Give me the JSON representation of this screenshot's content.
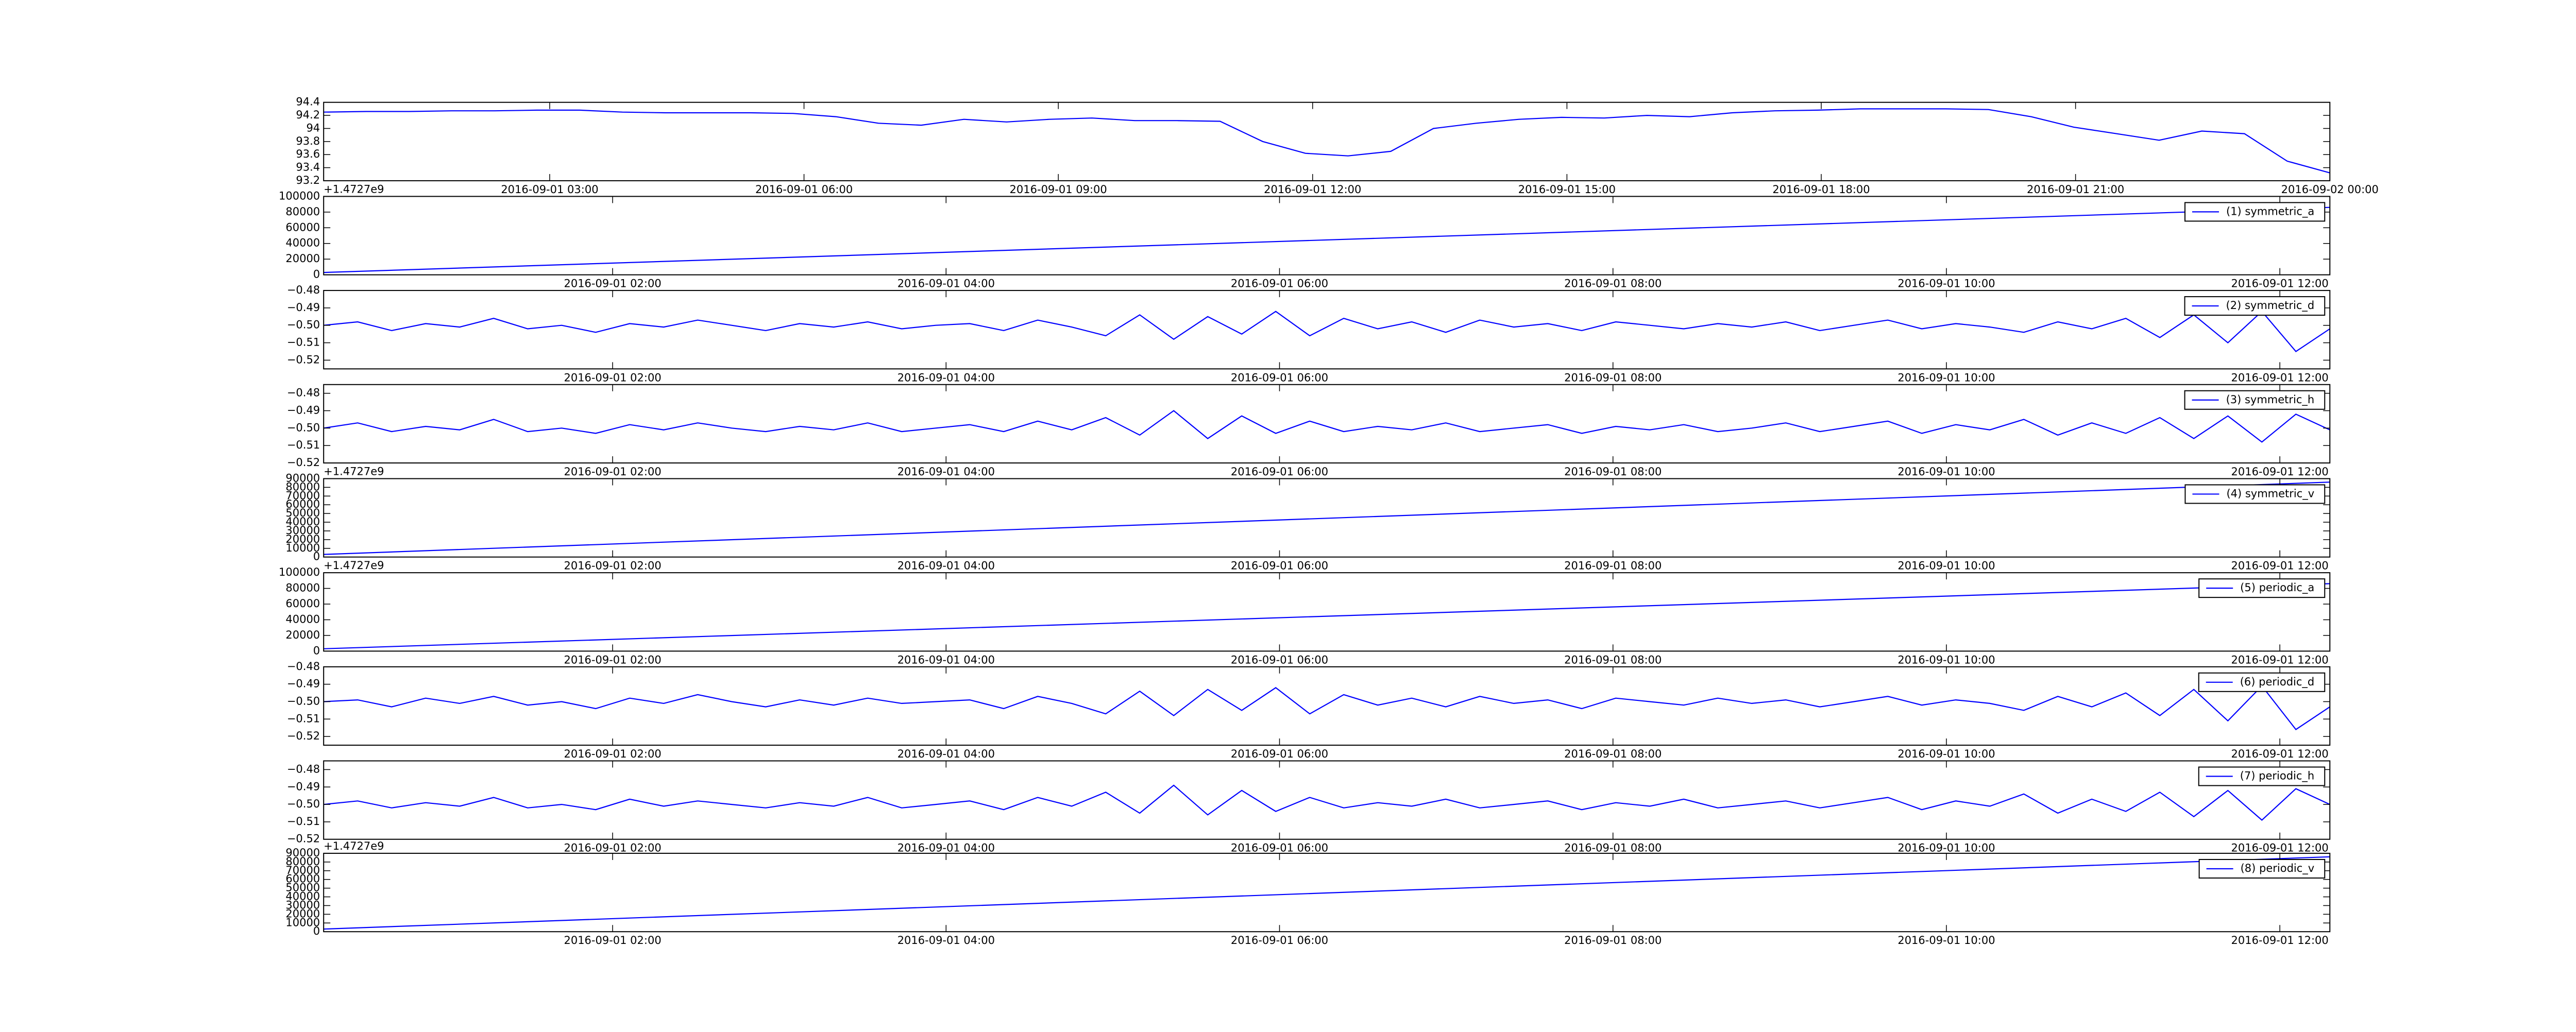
{
  "chart_data": [
    {
      "type": "line",
      "xlim": [
        "2016-09-01 00:20",
        "2016-09-02 00:00"
      ],
      "xticks": [
        "2016-09-01 03:00",
        "2016-09-01 06:00",
        "2016-09-01 09:00",
        "2016-09-01 12:00",
        "2016-09-01 15:00",
        "2016-09-01 18:00",
        "2016-09-01 21:00",
        "2016-09-02 00:00"
      ],
      "ylim": [
        93.2,
        94.4
      ],
      "yticks": [
        93.2,
        93.4,
        93.6,
        93.8,
        94.0,
        94.2,
        94.4
      ],
      "series": [
        {
          "color": "#0000ff",
          "values": [
            94.25,
            94.26,
            94.26,
            94.27,
            94.27,
            94.28,
            94.28,
            94.25,
            94.24,
            94.24,
            94.24,
            94.23,
            94.18,
            94.08,
            94.05,
            94.14,
            94.1,
            94.14,
            94.16,
            94.12,
            94.12,
            94.11,
            93.8,
            93.62,
            93.58,
            93.65,
            94.0,
            94.08,
            94.14,
            94.17,
            94.16,
            94.2,
            94.18,
            94.24,
            94.27,
            94.28,
            94.3,
            94.3,
            94.3,
            94.29,
            94.18,
            94.02,
            93.92,
            93.82,
            93.96,
            93.92,
            93.5,
            93.32
          ]
        }
      ]
    },
    {
      "type": "line",
      "offset_text": "+1.4727e9",
      "xlim": [
        "2016-09-01 00:16",
        "2016-09-01 12:18"
      ],
      "xticks": [
        "2016-09-01 02:00",
        "2016-09-01 04:00",
        "2016-09-01 06:00",
        "2016-09-01 08:00",
        "2016-09-01 10:00",
        "2016-09-01 12:00"
      ],
      "ylim": [
        0,
        100000
      ],
      "yticks": [
        0,
        20000,
        40000,
        60000,
        80000,
        100000
      ],
      "series": [
        {
          "name": "(1) symmetric_a",
          "color": "#0000ff",
          "values": [
            3000,
            86000
          ]
        }
      ]
    },
    {
      "type": "line",
      "xlim": [
        "2016-09-01 00:16",
        "2016-09-01 12:18"
      ],
      "xticks": [
        "2016-09-01 02:00",
        "2016-09-01 04:00",
        "2016-09-01 06:00",
        "2016-09-01 08:00",
        "2016-09-01 10:00",
        "2016-09-01 12:00"
      ],
      "ylim": [
        -0.525,
        -0.48
      ],
      "yticks": [
        {
          "value": -0.52,
          "label": "−0.52"
        },
        {
          "value": -0.51,
          "label": "−0.51"
        },
        {
          "value": -0.5,
          "label": "−0.50"
        },
        {
          "value": -0.49,
          "label": "−0.49"
        },
        {
          "value": -0.48,
          "label": "−0.48"
        }
      ],
      "series": [
        {
          "name": "(2) symmetric_d",
          "color": "#0000ff",
          "values": [
            -0.5,
            -0.498,
            -0.503,
            -0.499,
            -0.501,
            -0.496,
            -0.502,
            -0.5,
            -0.504,
            -0.499,
            -0.501,
            -0.497,
            -0.5,
            -0.503,
            -0.499,
            -0.501,
            -0.498,
            -0.502,
            -0.5,
            -0.499,
            -0.503,
            -0.497,
            -0.501,
            -0.506,
            -0.494,
            -0.508,
            -0.495,
            -0.505,
            -0.492,
            -0.506,
            -0.496,
            -0.502,
            -0.498,
            -0.504,
            -0.497,
            -0.501,
            -0.499,
            -0.503,
            -0.498,
            -0.5,
            -0.502,
            -0.499,
            -0.501,
            -0.498,
            -0.503,
            -0.5,
            -0.497,
            -0.502,
            -0.499,
            -0.501,
            -0.504,
            -0.498,
            -0.502,
            -0.496,
            -0.507,
            -0.494,
            -0.51,
            -0.492,
            -0.515,
            -0.502
          ]
        }
      ]
    },
    {
      "type": "line",
      "xlim": [
        "2016-09-01 00:16",
        "2016-09-01 12:18"
      ],
      "xticks": [
        "2016-09-01 02:00",
        "2016-09-01 04:00",
        "2016-09-01 06:00",
        "2016-09-01 08:00",
        "2016-09-01 10:00",
        "2016-09-01 12:00"
      ],
      "ylim": [
        -0.52,
        -0.475
      ],
      "yticks": [
        {
          "value": -0.52,
          "label": "−0.52"
        },
        {
          "value": -0.51,
          "label": "−0.51"
        },
        {
          "value": -0.5,
          "label": "−0.50"
        },
        {
          "value": -0.49,
          "label": "−0.49"
        },
        {
          "value": -0.48,
          "label": "−0.48"
        }
      ],
      "series": [
        {
          "name": "(3) symmetric_h",
          "color": "#0000ff",
          "values": [
            -0.5,
            -0.497,
            -0.502,
            -0.499,
            -0.501,
            -0.495,
            -0.502,
            -0.5,
            -0.503,
            -0.498,
            -0.501,
            -0.497,
            -0.5,
            -0.502,
            -0.499,
            -0.501,
            -0.497,
            -0.502,
            -0.5,
            -0.498,
            -0.502,
            -0.496,
            -0.501,
            -0.494,
            -0.504,
            -0.49,
            -0.506,
            -0.493,
            -0.503,
            -0.496,
            -0.502,
            -0.499,
            -0.501,
            -0.497,
            -0.502,
            -0.5,
            -0.498,
            -0.503,
            -0.499,
            -0.501,
            -0.498,
            -0.502,
            -0.5,
            -0.497,
            -0.502,
            -0.499,
            -0.496,
            -0.503,
            -0.498,
            -0.501,
            -0.495,
            -0.504,
            -0.497,
            -0.503,
            -0.494,
            -0.506,
            -0.493,
            -0.508,
            -0.492,
            -0.501
          ]
        }
      ]
    },
    {
      "type": "line",
      "offset_text": "+1.4727e9",
      "xlim": [
        "2016-09-01 00:16",
        "2016-09-01 12:18"
      ],
      "xticks": [
        "2016-09-01 02:00",
        "2016-09-01 04:00",
        "2016-09-01 06:00",
        "2016-09-01 08:00",
        "2016-09-01 10:00",
        "2016-09-01 12:00"
      ],
      "ylim": [
        0,
        90000
      ],
      "yticks": [
        0,
        10000,
        20000,
        30000,
        40000,
        50000,
        60000,
        70000,
        80000,
        90000
      ],
      "series": [
        {
          "name": "(4) symmetric_v",
          "color": "#0000ff",
          "values": [
            3000,
            86000
          ]
        }
      ]
    },
    {
      "type": "line",
      "offset_text": "+1.4727e9",
      "xlim": [
        "2016-09-01 00:16",
        "2016-09-01 12:18"
      ],
      "xticks": [
        "2016-09-01 02:00",
        "2016-09-01 04:00",
        "2016-09-01 06:00",
        "2016-09-01 08:00",
        "2016-09-01 10:00",
        "2016-09-01 12:00"
      ],
      "ylim": [
        0,
        100000
      ],
      "yticks": [
        0,
        20000,
        40000,
        60000,
        80000,
        100000
      ],
      "series": [
        {
          "name": "(5) periodic_a",
          "color": "#0000ff",
          "values": [
            3000,
            86000
          ]
        }
      ]
    },
    {
      "type": "line",
      "xlim": [
        "2016-09-01 00:16",
        "2016-09-01 12:18"
      ],
      "xticks": [
        "2016-09-01 02:00",
        "2016-09-01 04:00",
        "2016-09-01 06:00",
        "2016-09-01 08:00",
        "2016-09-01 10:00",
        "2016-09-01 12:00"
      ],
      "ylim": [
        -0.525,
        -0.48
      ],
      "yticks": [
        {
          "value": -0.52,
          "label": "−0.52"
        },
        {
          "value": -0.51,
          "label": "−0.51"
        },
        {
          "value": -0.5,
          "label": "−0.50"
        },
        {
          "value": -0.49,
          "label": "−0.49"
        },
        {
          "value": -0.48,
          "label": "−0.48"
        }
      ],
      "series": [
        {
          "name": "(6) periodic_d",
          "color": "#0000ff",
          "values": [
            -0.5,
            -0.499,
            -0.503,
            -0.498,
            -0.501,
            -0.497,
            -0.502,
            -0.5,
            -0.504,
            -0.498,
            -0.501,
            -0.496,
            -0.5,
            -0.503,
            -0.499,
            -0.502,
            -0.498,
            -0.501,
            -0.5,
            -0.499,
            -0.504,
            -0.497,
            -0.501,
            -0.507,
            -0.494,
            -0.508,
            -0.493,
            -0.505,
            -0.492,
            -0.507,
            -0.496,
            -0.502,
            -0.498,
            -0.503,
            -0.497,
            -0.501,
            -0.499,
            -0.504,
            -0.498,
            -0.5,
            -0.502,
            -0.498,
            -0.501,
            -0.499,
            -0.503,
            -0.5,
            -0.497,
            -0.502,
            -0.499,
            -0.501,
            -0.505,
            -0.497,
            -0.503,
            -0.495,
            -0.508,
            -0.493,
            -0.511,
            -0.491,
            -0.516,
            -0.503
          ]
        }
      ]
    },
    {
      "type": "line",
      "xlim": [
        "2016-09-01 00:16",
        "2016-09-01 12:18"
      ],
      "xticks": [
        "2016-09-01 02:00",
        "2016-09-01 04:00",
        "2016-09-01 06:00",
        "2016-09-01 08:00",
        "2016-09-01 10:00",
        "2016-09-01 12:00"
      ],
      "ylim": [
        -0.52,
        -0.475
      ],
      "yticks": [
        {
          "value": -0.52,
          "label": "−0.52"
        },
        {
          "value": -0.51,
          "label": "−0.51"
        },
        {
          "value": -0.5,
          "label": "−0.50"
        },
        {
          "value": -0.49,
          "label": "−0.49"
        },
        {
          "value": -0.48,
          "label": "−0.48"
        }
      ],
      "series": [
        {
          "name": "(7) periodic_h",
          "color": "#0000ff",
          "values": [
            -0.5,
            -0.498,
            -0.502,
            -0.499,
            -0.501,
            -0.496,
            -0.502,
            -0.5,
            -0.503,
            -0.497,
            -0.501,
            -0.498,
            -0.5,
            -0.502,
            -0.499,
            -0.501,
            -0.496,
            -0.502,
            -0.5,
            -0.498,
            -0.503,
            -0.496,
            -0.501,
            -0.493,
            -0.505,
            -0.489,
            -0.506,
            -0.492,
            -0.504,
            -0.496,
            -0.502,
            -0.499,
            -0.501,
            -0.497,
            -0.502,
            -0.5,
            -0.498,
            -0.503,
            -0.499,
            -0.501,
            -0.497,
            -0.502,
            -0.5,
            -0.498,
            -0.502,
            -0.499,
            -0.496,
            -0.503,
            -0.498,
            -0.501,
            -0.494,
            -0.505,
            -0.497,
            -0.504,
            -0.493,
            -0.507,
            -0.492,
            -0.509,
            -0.491,
            -0.5
          ]
        }
      ]
    },
    {
      "type": "line",
      "offset_text": "+1.4727e9",
      "xlim": [
        "2016-09-01 00:16",
        "2016-09-01 12:18"
      ],
      "xticks": [
        "2016-09-01 02:00",
        "2016-09-01 04:00",
        "2016-09-01 06:00",
        "2016-09-01 08:00",
        "2016-09-01 10:00",
        "2016-09-01 12:00"
      ],
      "ylim": [
        0,
        90000
      ],
      "yticks": [
        0,
        10000,
        20000,
        30000,
        40000,
        50000,
        60000,
        70000,
        80000,
        90000
      ],
      "series": [
        {
          "name": "(8) periodic_v",
          "color": "#0000ff",
          "values": [
            3000,
            86000
          ]
        }
      ]
    }
  ]
}
